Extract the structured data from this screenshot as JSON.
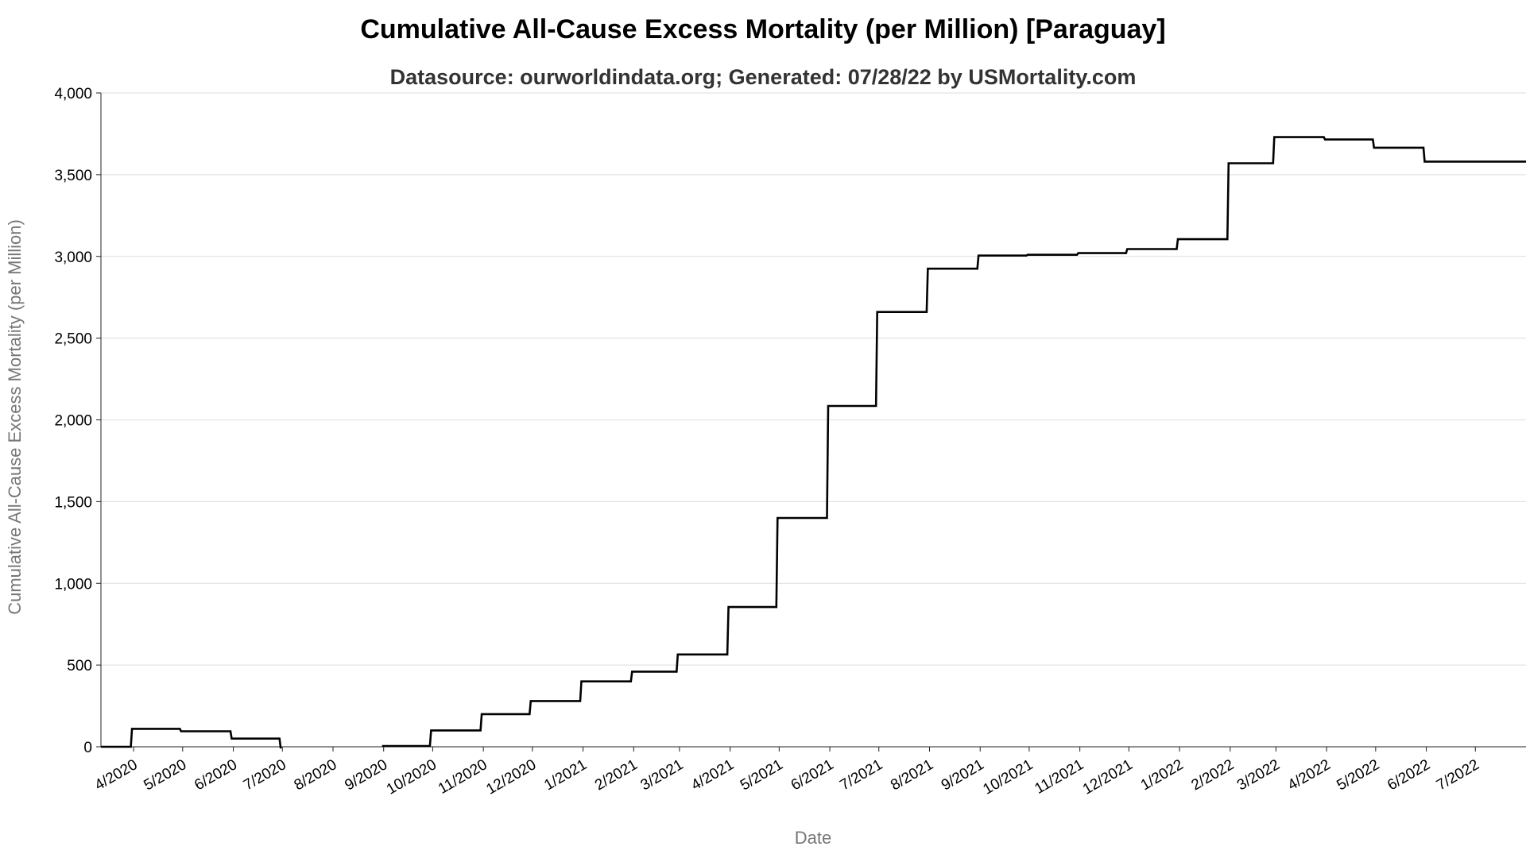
{
  "chart_data": {
    "type": "line",
    "title": "Cumulative All-Cause Excess Mortality (per Million) [Paraguay]",
    "subtitle": "Datasource: ourworldindata.org; Generated: 07/28/22 by USMortality.com",
    "xlabel": "Date",
    "ylabel": "Cumulative All-Cause Excess Mortality (per Million)",
    "ylim": [
      0,
      4000
    ],
    "xlim": [
      "2020-03-12",
      "2022-08-01"
    ],
    "yticks": [
      0,
      500,
      1000,
      1500,
      2000,
      2500,
      3000,
      3500,
      4000
    ],
    "ytick_labels": [
      "0",
      "500",
      "1,000",
      "1,500",
      "2,000",
      "2,500",
      "3,000",
      "3,500",
      "4,000"
    ],
    "xticks": [
      "2020-04-01",
      "2020-05-01",
      "2020-06-01",
      "2020-07-01",
      "2020-08-01",
      "2020-09-01",
      "2020-10-01",
      "2020-11-01",
      "2020-12-01",
      "2021-01-01",
      "2021-02-01",
      "2021-03-01",
      "2021-04-01",
      "2021-05-01",
      "2021-06-01",
      "2021-07-01",
      "2021-08-01",
      "2021-09-01",
      "2021-10-01",
      "2021-11-01",
      "2021-12-01",
      "2022-01-01",
      "2022-02-01",
      "2022-03-01",
      "2022-04-01",
      "2022-05-01",
      "2022-06-01",
      "2022-07-01"
    ],
    "xtick_labels": [
      "4/2020",
      "5/2020",
      "6/2020",
      "7/2020",
      "8/2020",
      "9/2020",
      "10/2020",
      "11/2020",
      "12/2020",
      "1/2021",
      "2/2021",
      "3/2021",
      "4/2021",
      "5/2021",
      "6/2021",
      "7/2021",
      "8/2021",
      "9/2021",
      "10/2021",
      "11/2021",
      "12/2021",
      "1/2022",
      "2/2022",
      "3/2022",
      "4/2022",
      "5/2022",
      "6/2022",
      "7/2022"
    ],
    "grid": true,
    "line_color": "#000000",
    "step": true,
    "segments": [
      [
        {
          "x": "2020-03-12",
          "y": 0
        },
        {
          "x": "2020-03-31",
          "y": 110
        },
        {
          "x": "2020-04-30",
          "y": 95
        },
        {
          "x": "2020-05-31",
          "y": 50
        },
        {
          "x": "2020-06-30",
          "y": -10
        }
      ],
      [
        {
          "x": "2020-08-31",
          "y": 5
        },
        {
          "x": "2020-09-30",
          "y": 100
        },
        {
          "x": "2020-10-31",
          "y": 200
        },
        {
          "x": "2020-11-30",
          "y": 280
        },
        {
          "x": "2020-12-31",
          "y": 400
        },
        {
          "x": "2021-01-31",
          "y": 460
        },
        {
          "x": "2021-02-28",
          "y": 565
        },
        {
          "x": "2021-03-31",
          "y": 855
        },
        {
          "x": "2021-04-30",
          "y": 1400
        },
        {
          "x": "2021-05-31",
          "y": 2085
        },
        {
          "x": "2021-06-30",
          "y": 2660
        },
        {
          "x": "2021-07-31",
          "y": 2925
        },
        {
          "x": "2021-08-31",
          "y": 3005
        },
        {
          "x": "2021-09-30",
          "y": 3010
        },
        {
          "x": "2021-10-31",
          "y": 3020
        },
        {
          "x": "2021-11-30",
          "y": 3045
        },
        {
          "x": "2021-12-31",
          "y": 3105
        },
        {
          "x": "2022-01-31",
          "y": 3570
        },
        {
          "x": "2022-02-28",
          "y": 3730
        },
        {
          "x": "2022-03-31",
          "y": 3715
        },
        {
          "x": "2022-04-30",
          "y": 3665
        },
        {
          "x": "2022-05-31",
          "y": 3580
        },
        {
          "x": "2022-08-01",
          "y": 3580
        }
      ]
    ]
  }
}
